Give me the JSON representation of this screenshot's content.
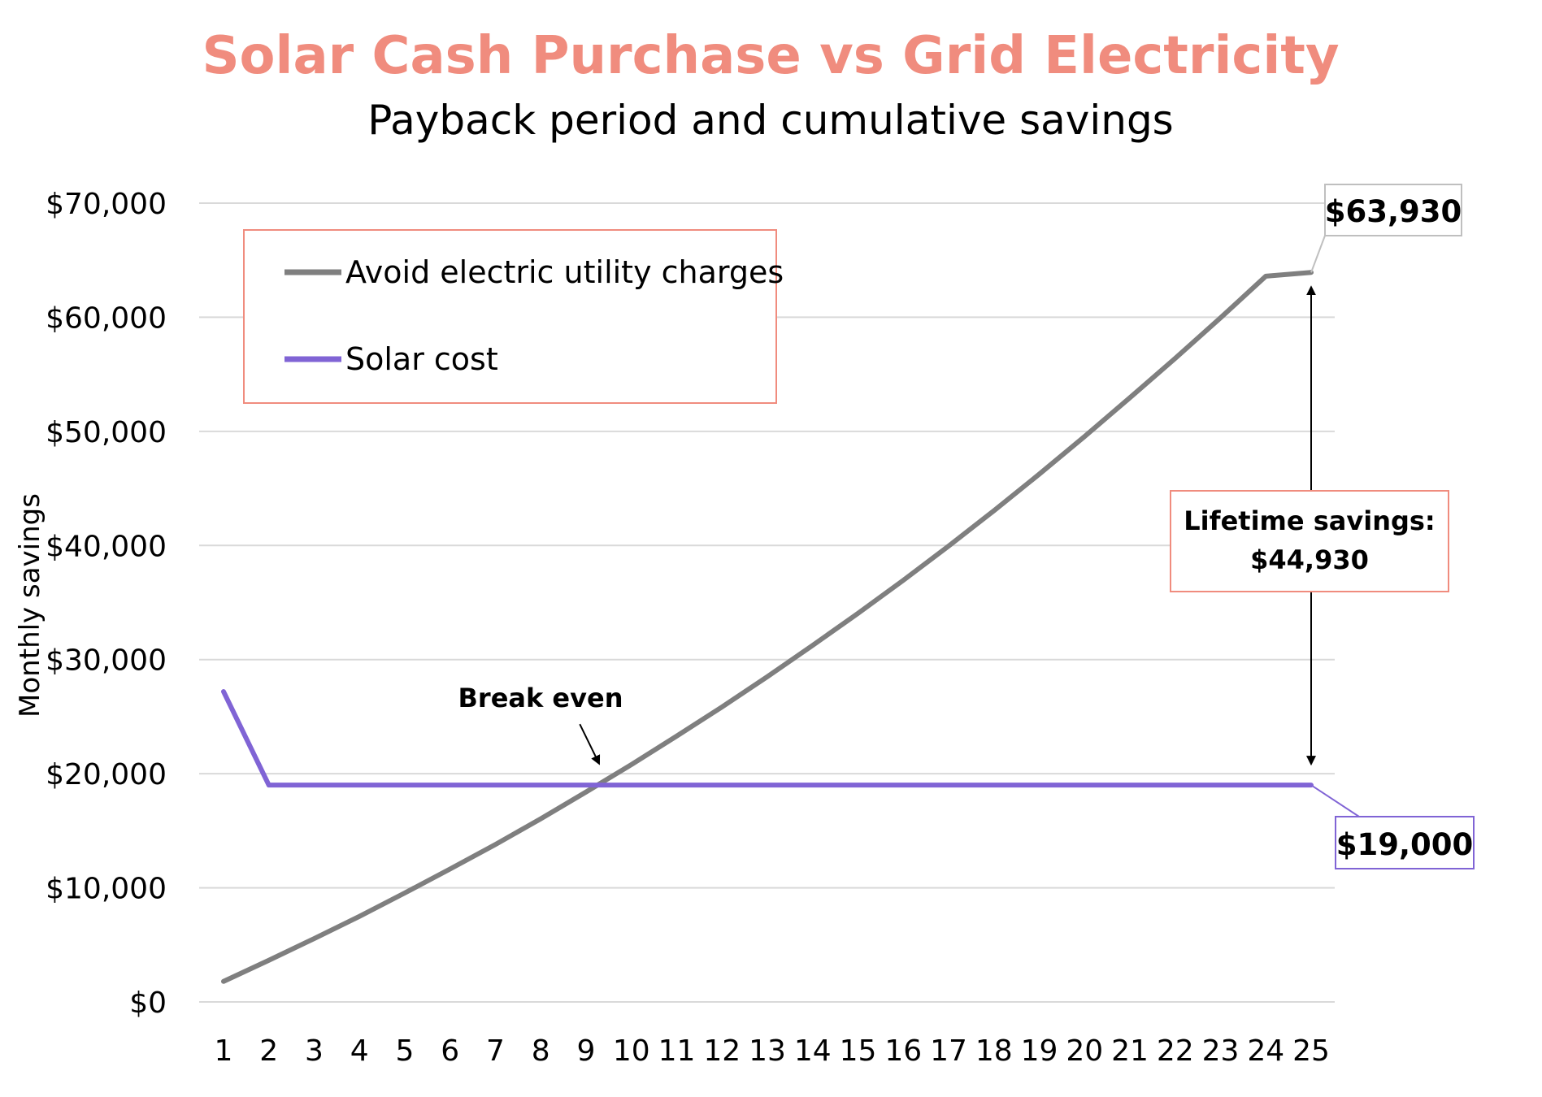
{
  "colors": {
    "title": "#F08C7E",
    "grid": "#D9D9D9",
    "utility_line": "#7F7F7F",
    "solar_line": "#8064D5",
    "legend_border": "#F08C7E",
    "savings_box_border": "#F08C7E",
    "end_label_utility_border": "#BFBFBF",
    "end_label_solar_border": "#8064D5"
  },
  "chart_data": {
    "type": "line",
    "title": "Solar Cash Purchase vs Grid Electricity",
    "subtitle": "Payback period and cumulative savings",
    "xlabel": "",
    "ylabel": "Monthly savings",
    "ylim": [
      0,
      70000
    ],
    "yticks": [
      0,
      10000,
      20000,
      30000,
      40000,
      50000,
      60000,
      70000
    ],
    "ytick_labels": [
      "$0",
      "$10,000",
      "$20,000",
      "$30,000",
      "$40,000",
      "$50,000",
      "$60,000",
      "$70,000"
    ],
    "categories": [
      "1",
      "2",
      "3",
      "4",
      "5",
      "6",
      "7",
      "8",
      "9",
      "10",
      "11",
      "12",
      "13",
      "14",
      "15",
      "16",
      "17",
      "18",
      "19",
      "20",
      "21",
      "22",
      "23",
      "24",
      "25"
    ],
    "grid": true,
    "legend_position": "top-left",
    "series": [
      {
        "name": "Avoid electric utility charges",
        "color": "#7F7F7F",
        "values": [
          1800,
          3650,
          5550,
          7500,
          9550,
          11650,
          13800,
          16050,
          18400,
          20800,
          23300,
          25850,
          28500,
          31250,
          34050,
          36950,
          39950,
          43050,
          46250,
          49550,
          52950,
          56400,
          59950,
          63600,
          63930
        ]
      },
      {
        "name": "Solar cost",
        "color": "#8064D5",
        "values": [
          27200,
          19000,
          19000,
          19000,
          19000,
          19000,
          19000,
          19000,
          19000,
          19000,
          19000,
          19000,
          19000,
          19000,
          19000,
          19000,
          19000,
          19000,
          19000,
          19000,
          19000,
          19000,
          19000,
          19000,
          19000
        ]
      }
    ],
    "annotations": {
      "break_even_label": "Break even",
      "break_even_x": 9.4,
      "break_even_y": 19000,
      "savings_label_line1": "Lifetime savings:",
      "savings_label_line2": "$44,930",
      "end_value_utility": "$63,930",
      "end_value_solar": "$19,000"
    }
  }
}
